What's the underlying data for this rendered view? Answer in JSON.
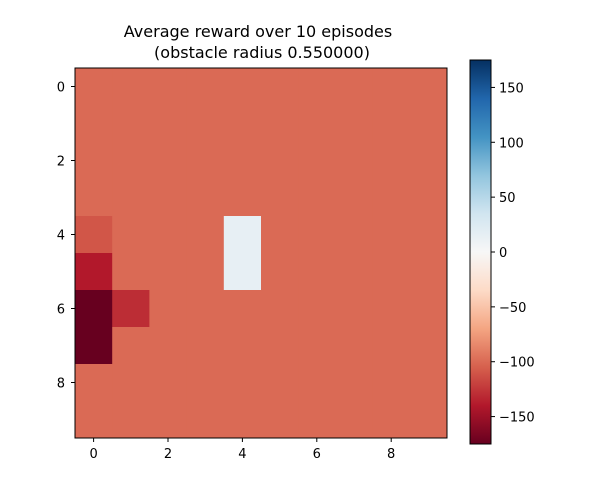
{
  "chart_data": {
    "type": "heatmap",
    "title_lines": [
      "Average reward over 10 episodes",
      "(obstacle radius 0.550000)"
    ],
    "xlabel": "",
    "ylabel": "",
    "x_ticks": [
      0,
      2,
      4,
      6,
      8
    ],
    "y_ticks": [
      0,
      2,
      4,
      6,
      8
    ],
    "x_range": [
      -0.5,
      9.5
    ],
    "y_range": [
      -0.5,
      9.5
    ],
    "rows": 10,
    "cols": 10,
    "values": [
      [
        -100,
        -100,
        -100,
        -100,
        -100,
        -100,
        -100,
        -100,
        -100,
        -100
      ],
      [
        -100,
        -100,
        -100,
        -100,
        -100,
        -100,
        -100,
        -100,
        -100,
        -100
      ],
      [
        -100,
        -100,
        -100,
        -100,
        -100,
        -100,
        -100,
        -100,
        -100,
        -100
      ],
      [
        -100,
        -100,
        -100,
        -100,
        -100,
        -100,
        -100,
        -100,
        -100,
        -100
      ],
      [
        -110,
        -100,
        -100,
        -100,
        15,
        -100,
        -100,
        -100,
        -100,
        -100
      ],
      [
        -140,
        -100,
        -100,
        -100,
        15,
        -100,
        -100,
        -100,
        -100,
        -100
      ],
      [
        -175,
        -130,
        -100,
        -100,
        -100,
        -100,
        -100,
        -100,
        -100,
        -100
      ],
      [
        -175,
        -100,
        -100,
        -100,
        -100,
        -100,
        -100,
        -100,
        -100,
        -100
      ],
      [
        -100,
        -100,
        -100,
        -100,
        -100,
        -100,
        -100,
        -100,
        -100,
        -100
      ],
      [
        -100,
        -100,
        -100,
        -100,
        -100,
        -100,
        -100,
        -100,
        -100,
        -100
      ]
    ],
    "colormap": "RdBu",
    "vmin": -175,
    "vmax": 175,
    "colorbar_ticks": [
      150,
      100,
      50,
      0,
      -50,
      -100,
      -150
    ],
    "colorbar_tick_labels": [
      "150",
      "100",
      "50",
      "0",
      "−50",
      "−100",
      "−150"
    ]
  }
}
